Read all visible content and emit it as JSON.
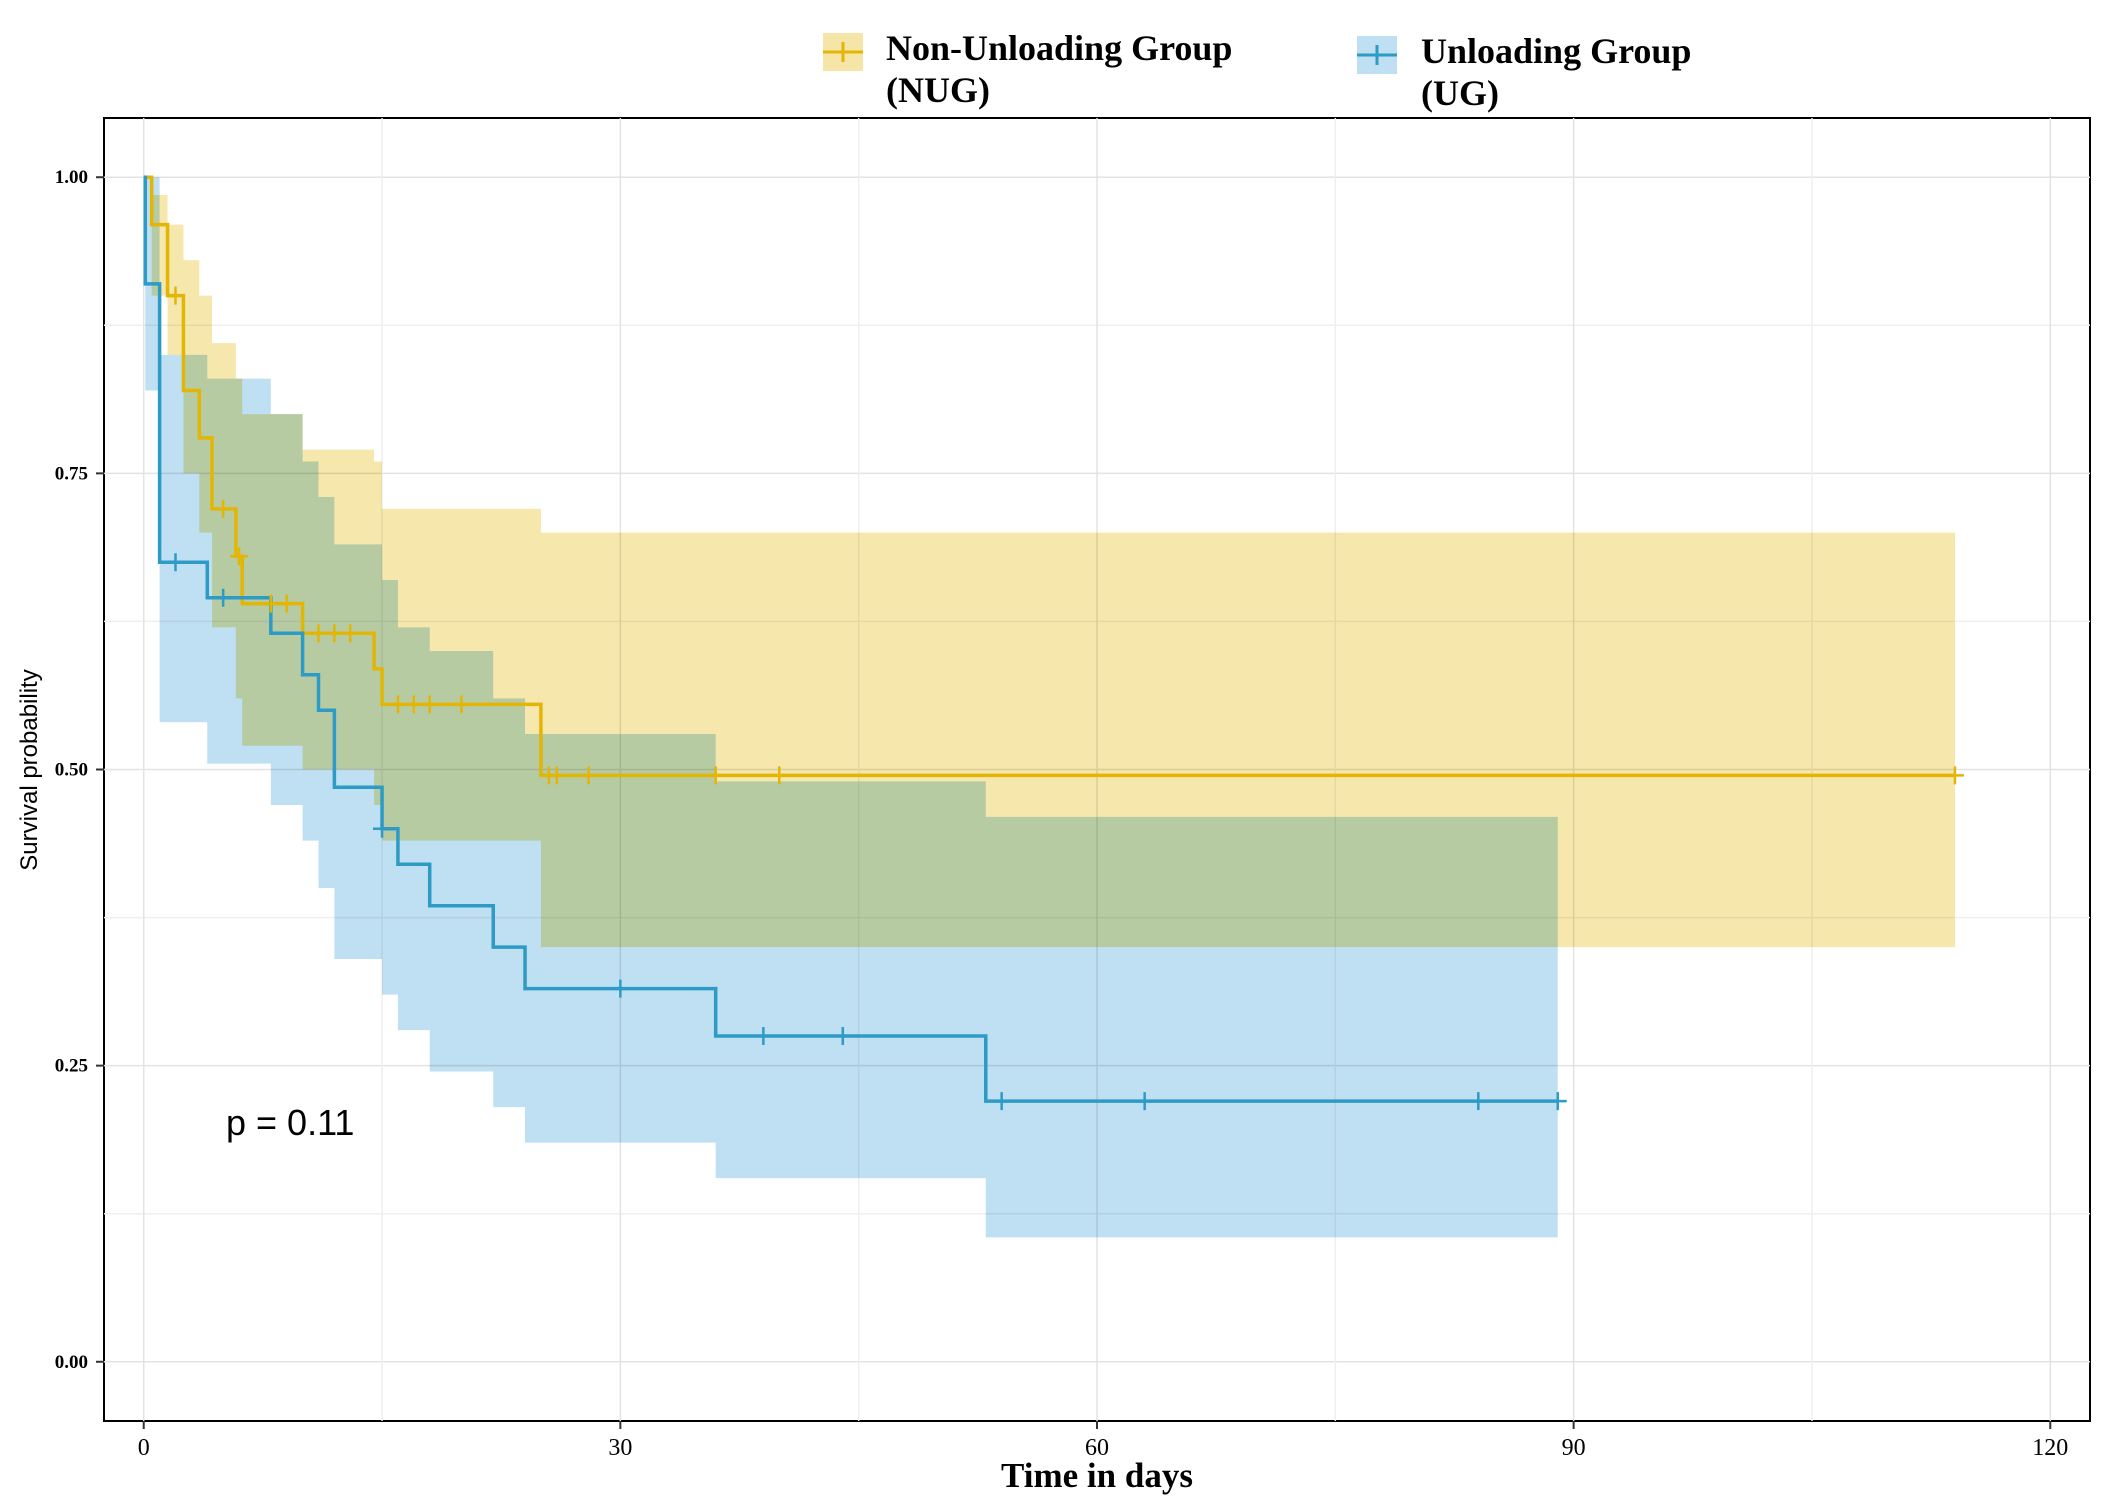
{
  "chart_data": {
    "type": "line",
    "title": "",
    "xlabel": "Time in days",
    "ylabel": "Survival probability",
    "xlim": [
      -2.5,
      122.5
    ],
    "ylim": [
      -0.05,
      1.05
    ],
    "x_ticks": [
      0,
      30,
      60,
      90,
      120
    ],
    "x_tick_labels": [
      "0",
      "30",
      "60",
      "90",
      "120"
    ],
    "y_ticks": [
      0.0,
      0.25,
      0.5,
      0.75,
      1.0
    ],
    "y_tick_labels": [
      "0.00",
      "0.25",
      "0.50",
      "0.75",
      "1.00"
    ],
    "grid": true,
    "legend_position": "top",
    "annotation": "p = 0.11",
    "colors": {
      "NUG": "#E3B505",
      "UG": "#2E9AC6",
      "NUG_fill": "#F5E6A8",
      "UG_fill": "#BEE0F2",
      "overlap_fill": "#C2D8BC"
    },
    "series": [
      {
        "name": "Non-Unloading Group\n(NUG)",
        "legend_lines": [
          "Non-Unloading Group",
          "(NUG)"
        ],
        "steps": [
          [
            0,
            1.0
          ],
          [
            0.5,
            0.96
          ],
          [
            1.5,
            0.9
          ],
          [
            2.5,
            0.82
          ],
          [
            3.5,
            0.78
          ],
          [
            4.3,
            0.72
          ],
          [
            5.8,
            0.68
          ],
          [
            6.2,
            0.64
          ],
          [
            10,
            0.615
          ],
          [
            14.5,
            0.585
          ],
          [
            15,
            0.555
          ],
          [
            25,
            0.495
          ],
          [
            114,
            0.495
          ]
        ],
        "ci": [
          [
            0,
            1.0,
            1.0
          ],
          [
            0.5,
            0.985,
            0.9
          ],
          [
            1.5,
            0.96,
            0.85
          ],
          [
            2.5,
            0.93,
            0.75
          ],
          [
            3.5,
            0.9,
            0.7
          ],
          [
            4.3,
            0.86,
            0.62
          ],
          [
            5.8,
            0.83,
            0.56
          ],
          [
            6.2,
            0.8,
            0.52
          ],
          [
            10,
            0.77,
            0.5
          ],
          [
            12,
            0.77,
            0.5
          ],
          [
            14.5,
            0.76,
            0.47
          ],
          [
            15,
            0.72,
            0.44
          ],
          [
            25,
            0.7,
            0.35
          ],
          [
            114,
            0.7,
            0.35
          ]
        ],
        "censored": [
          2,
          5,
          6,
          8,
          9,
          11,
          12,
          13,
          16,
          17,
          18,
          20,
          25.5,
          26,
          28,
          36,
          40,
          114
        ]
      },
      {
        "name": "Unloading Group\n(UG)",
        "legend_lines": [
          "Unloading Group",
          "(UG)"
        ],
        "steps": [
          [
            0,
            1.0
          ],
          [
            0.1,
            0.91
          ],
          [
            1,
            0.675
          ],
          [
            4,
            0.645
          ],
          [
            8,
            0.615
          ],
          [
            10,
            0.58
          ],
          [
            11,
            0.55
          ],
          [
            12,
            0.485
          ],
          [
            15,
            0.45
          ],
          [
            16,
            0.42
          ],
          [
            18,
            0.385
          ],
          [
            22,
            0.35
          ],
          [
            24,
            0.315
          ],
          [
            36,
            0.275
          ],
          [
            53,
            0.22
          ],
          [
            89,
            0.22
          ]
        ],
        "ci": [
          [
            0,
            1.0,
            1.0
          ],
          [
            0.1,
            1.0,
            0.82
          ],
          [
            1,
            0.85,
            0.54
          ],
          [
            4,
            0.83,
            0.505
          ],
          [
            8,
            0.8,
            0.47
          ],
          [
            10,
            0.76,
            0.44
          ],
          [
            11,
            0.73,
            0.4
          ],
          [
            12,
            0.69,
            0.34
          ],
          [
            15,
            0.66,
            0.31
          ],
          [
            16,
            0.62,
            0.28
          ],
          [
            18,
            0.6,
            0.245
          ],
          [
            22,
            0.56,
            0.215
          ],
          [
            24,
            0.53,
            0.185
          ],
          [
            36,
            0.49,
            0.155
          ],
          [
            53,
            0.46,
            0.105
          ],
          [
            89,
            0.46,
            0.105
          ]
        ],
        "censored": [
          2,
          5,
          15,
          30,
          39,
          44,
          54,
          63,
          84,
          89
        ]
      }
    ]
  }
}
